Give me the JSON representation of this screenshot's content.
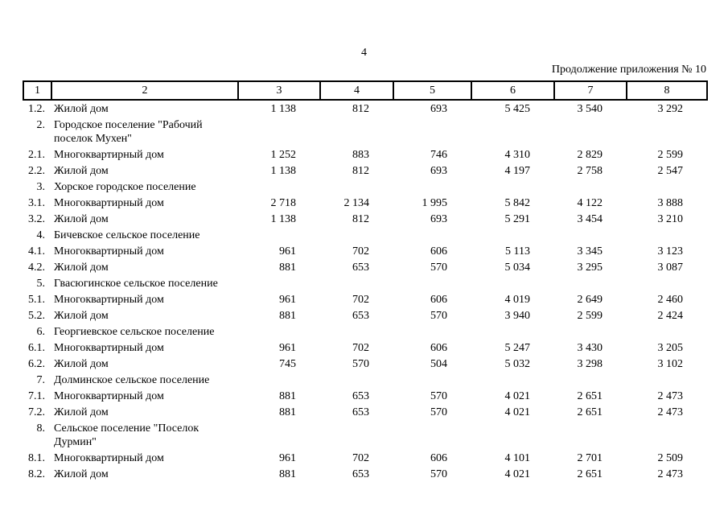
{
  "page": {
    "page_number": "4",
    "continuation_note": "Продолжение приложения № 10"
  },
  "table": {
    "header_columns": [
      "1",
      "2",
      "3",
      "4",
      "5",
      "6",
      "7",
      "8"
    ],
    "rows": [
      {
        "num": "1.2.",
        "name": "Жилой дом",
        "values": [
          "1 138",
          "812",
          "693",
          "5 425",
          "3 540",
          "3 292"
        ]
      },
      {
        "num": "2.",
        "name": "Городское поселение \"Рабочий поселок Мухен\"",
        "values": [
          "",
          "",
          "",
          "",
          "",
          ""
        ]
      },
      {
        "num": "2.1.",
        "name": "Многоквартирный дом",
        "values": [
          "1 252",
          "883",
          "746",
          "4 310",
          "2 829",
          "2 599"
        ]
      },
      {
        "num": "2.2.",
        "name": "Жилой дом",
        "values": [
          "1 138",
          "812",
          "693",
          "4 197",
          "2 758",
          "2 547"
        ]
      },
      {
        "num": "3.",
        "name": "Хорское городское поселение",
        "values": [
          "",
          "",
          "",
          "",
          "",
          ""
        ]
      },
      {
        "num": "3.1.",
        "name": "Многоквартирный дом",
        "values": [
          "2 718",
          "2 134",
          "1 995",
          "5 842",
          "4 122",
          "3 888"
        ]
      },
      {
        "num": "3.2.",
        "name": "Жилой дом",
        "values": [
          "1 138",
          "812",
          "693",
          "5 291",
          "3 454",
          "3 210"
        ]
      },
      {
        "num": "4.",
        "name": "Бичевское сельское поселение",
        "values": [
          "",
          "",
          "",
          "",
          "",
          ""
        ]
      },
      {
        "num": "4.1.",
        "name": "Многоквартирный дом",
        "values": [
          "961",
          "702",
          "606",
          "5 113",
          "3 345",
          "3 123"
        ]
      },
      {
        "num": "4.2.",
        "name": "Жилой дом",
        "values": [
          "881",
          "653",
          "570",
          "5 034",
          "3 295",
          "3 087"
        ]
      },
      {
        "num": "5.",
        "name": "Гвасюгинское сельское поселение",
        "values": [
          "",
          "",
          "",
          "",
          "",
          ""
        ]
      },
      {
        "num": "5.1.",
        "name": "Многоквартирный дом",
        "values": [
          "961",
          "702",
          "606",
          "4 019",
          "2 649",
          "2 460"
        ]
      },
      {
        "num": "5.2.",
        "name": "Жилой дом",
        "values": [
          "881",
          "653",
          "570",
          "3 940",
          "2 599",
          "2 424"
        ]
      },
      {
        "num": "6.",
        "name": "Георгиевское сельское поселение",
        "values": [
          "",
          "",
          "",
          "",
          "",
          ""
        ]
      },
      {
        "num": "6.1.",
        "name": "Многоквартирный дом",
        "values": [
          "961",
          "702",
          "606",
          "5 247",
          "3 430",
          "3 205"
        ]
      },
      {
        "num": "6.2.",
        "name": "Жилой дом",
        "values": [
          "745",
          "570",
          "504",
          "5 032",
          "3 298",
          "3 102"
        ]
      },
      {
        "num": "7.",
        "name": "Долминское сельское поселение",
        "values": [
          "",
          "",
          "",
          "",
          "",
          ""
        ]
      },
      {
        "num": "7.1.",
        "name": "Многоквартирный дом",
        "values": [
          "881",
          "653",
          "570",
          "4 021",
          "2 651",
          "2 473"
        ]
      },
      {
        "num": "7.2.",
        "name": "Жилой дом",
        "values": [
          "881",
          "653",
          "570",
          "4 021",
          "2 651",
          "2 473"
        ]
      },
      {
        "num": "8.",
        "name": "Сельское поселение \"Поселок Дурмин\"",
        "values": [
          "",
          "",
          "",
          "",
          "",
          ""
        ]
      },
      {
        "num": "8.1.",
        "name": "Многоквартирный дом",
        "values": [
          "961",
          "702",
          "606",
          "4 101",
          "2 701",
          "2 509"
        ]
      },
      {
        "num": "8.2.",
        "name": "Жилой дом",
        "values": [
          "881",
          "653",
          "570",
          "4 021",
          "2 651",
          "2 473"
        ]
      }
    ]
  }
}
